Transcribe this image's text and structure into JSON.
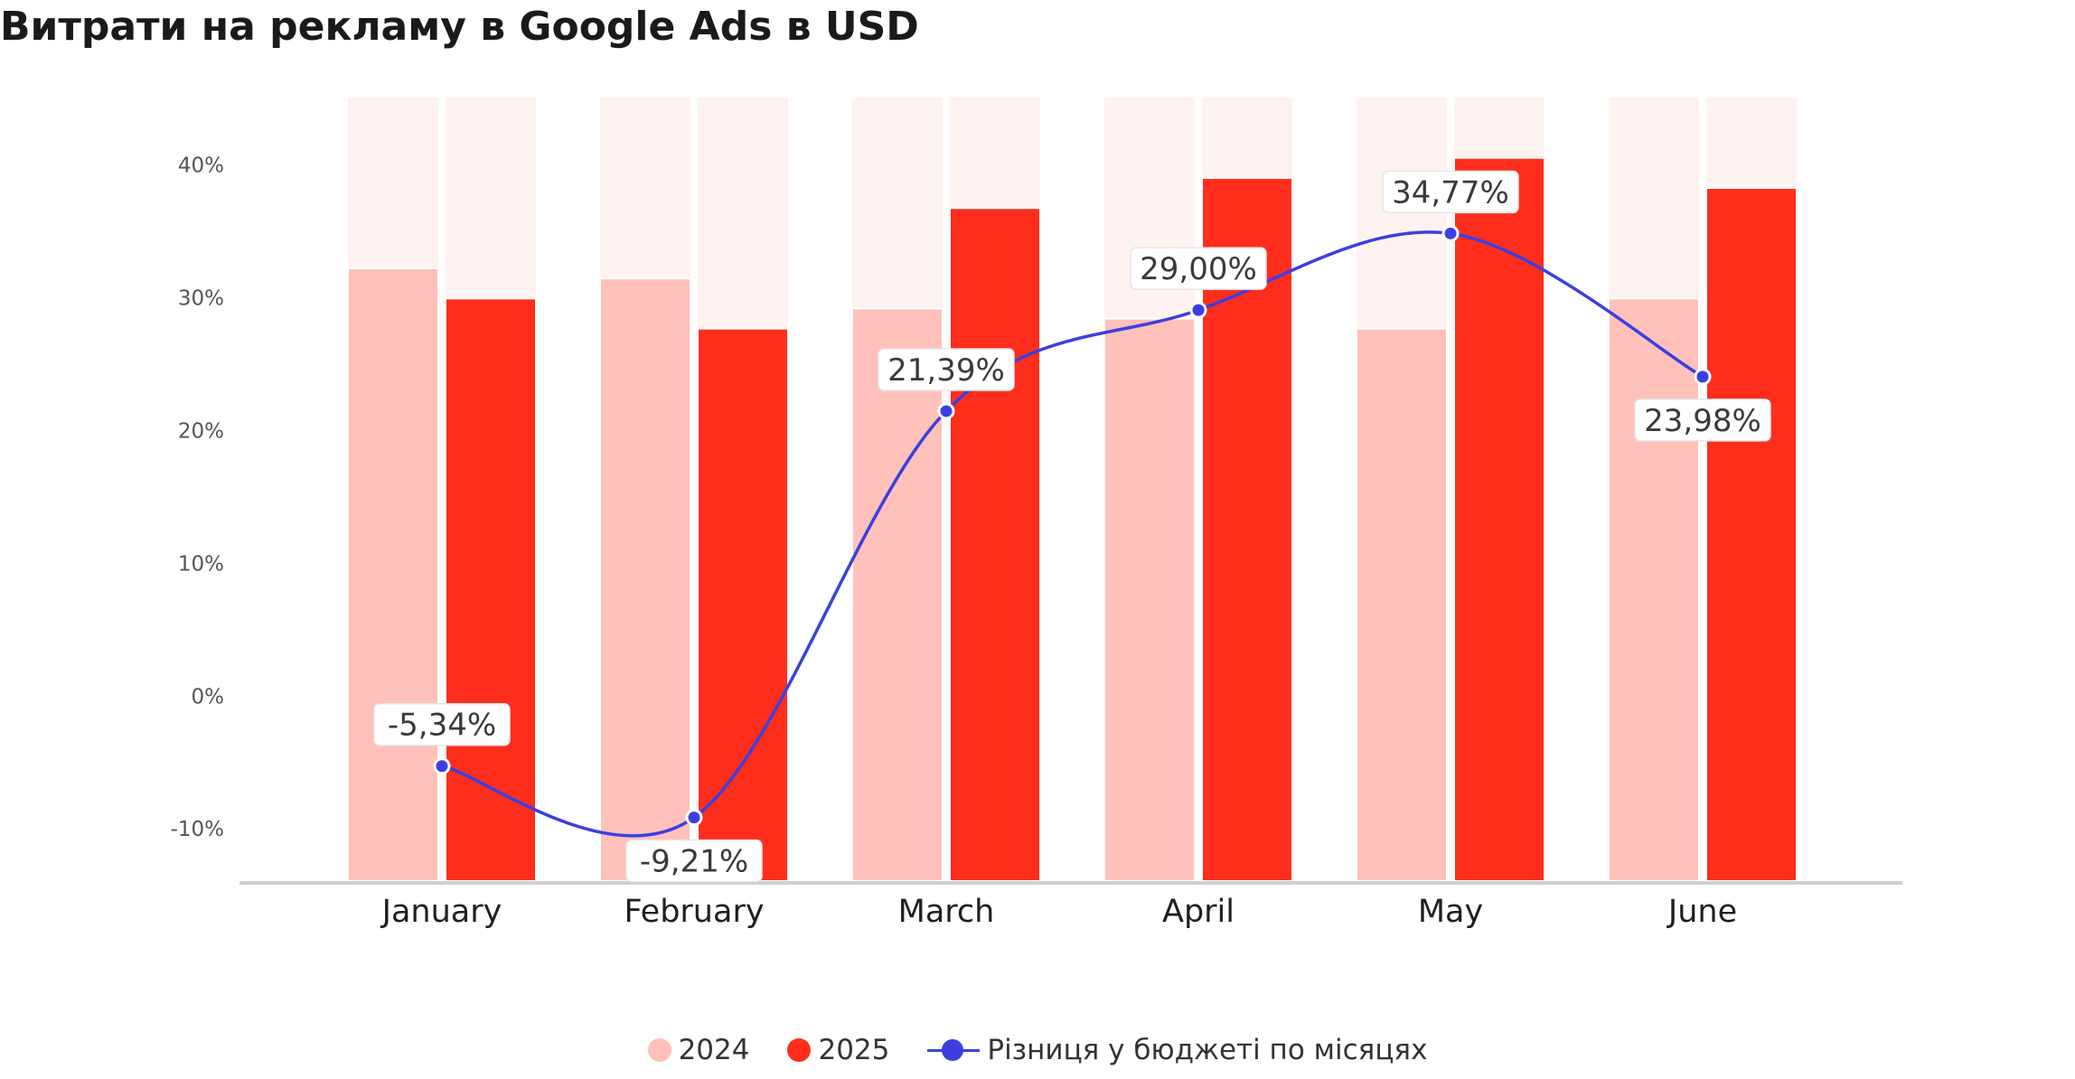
{
  "title": "Витрати на рекламу в Google Ads в USD",
  "colors": {
    "series_2024": "#FFC1BA",
    "series_2025": "#FF2D1C",
    "background_bar": "#FFF3F1",
    "difference_line": "#3B3FE0",
    "axis": "#D0D0D0",
    "tick_text": "#555555"
  },
  "legend": {
    "items": [
      {
        "label": "2024",
        "marker": "dot"
      },
      {
        "label": "2025",
        "marker": "dot"
      },
      {
        "label": "Різниця у бюджеті по місяцях",
        "marker": "line-dot"
      }
    ]
  },
  "chart_data": {
    "type": "bar",
    "title": "Витрати на рекламу в Google Ads в USD",
    "categories": [
      "January",
      "February",
      "March",
      "April",
      "May",
      "June"
    ],
    "y_ticks": [
      "40%",
      "30%",
      "20%",
      "10%",
      "0%",
      "-10%"
    ],
    "series": [
      {
        "name": "2024",
        "type": "bar",
        "values": [
          61,
          60,
          57,
          56,
          55,
          58
        ]
      },
      {
        "name": "2025",
        "type": "bar",
        "values": [
          58,
          55,
          67,
          70,
          72,
          69
        ]
      },
      {
        "name": "Різниця у бюджеті по місяцях",
        "type": "line",
        "values": [
          -5.34,
          -9.21,
          21.39,
          29.0,
          34.77,
          23.98
        ],
        "labels": [
          "-5,34%",
          "-9,21%",
          "21,39%",
          "29,00%",
          "34,77%",
          "23,98%"
        ],
        "ylim": [
          -14,
          45
        ]
      }
    ],
    "bar_ylim": [
      0,
      78
    ],
    "line_ylim": [
      -14,
      45
    ],
    "grid": false,
    "legend_position": "bottom-center"
  }
}
